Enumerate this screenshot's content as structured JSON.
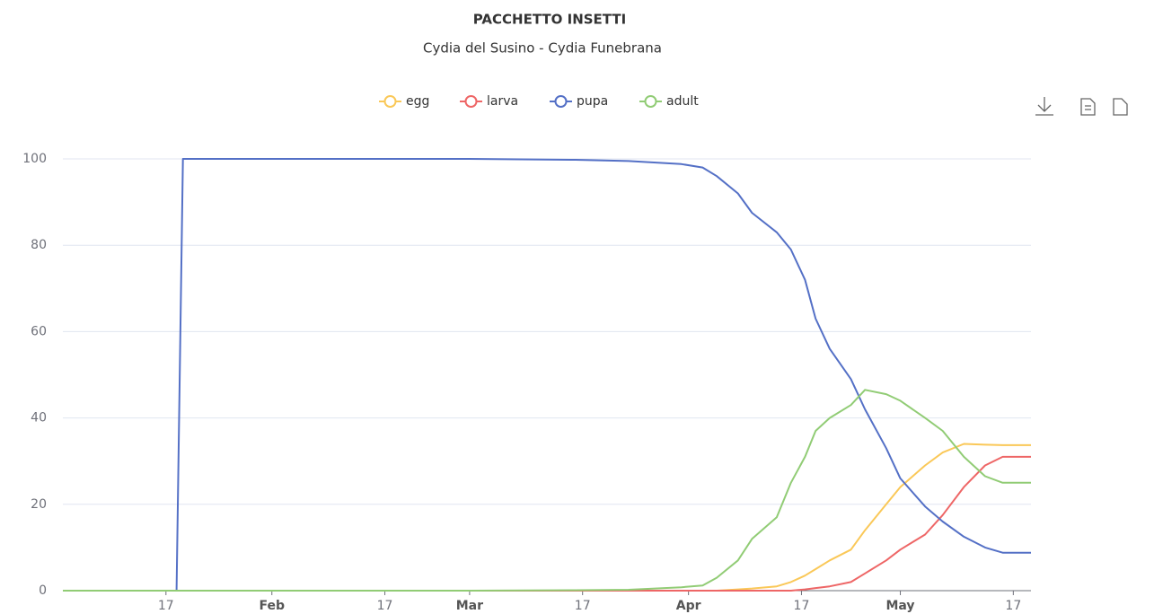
{
  "chart_data": {
    "type": "line",
    "title": "PACCHETTO INSETTI",
    "subtitle": "Cydia del Susino - Cydia Funebrana",
    "x": [
      2.4,
      18.5,
      19.4,
      40,
      60,
      75,
      82.5,
      90,
      93,
      95,
      98,
      100,
      103.5,
      105.5,
      107.5,
      109,
      111,
      114,
      116,
      119,
      121,
      124.5,
      127,
      130,
      133,
      135.5,
      139.5
    ],
    "series": [
      {
        "name": "egg",
        "color": "#fac858",
        "values": [
          0,
          0,
          0,
          0,
          0,
          0,
          0,
          0,
          0,
          0,
          0.3,
          0.5,
          1,
          2,
          3.5,
          5,
          7,
          9.5,
          14,
          20,
          24,
          29,
          32,
          34,
          33.8,
          33.7,
          33.7
        ]
      },
      {
        "name": "larva",
        "color": "#ee6666",
        "values": [
          0,
          0,
          0,
          0,
          0,
          0,
          0,
          0,
          0,
          0,
          0,
          0,
          0,
          0,
          0.3,
          0.6,
          1,
          2,
          4,
          7,
          9.5,
          13,
          17.5,
          24,
          29,
          31,
          31
        ]
      },
      {
        "name": "pupa",
        "color": "#5470c6",
        "values": [
          0,
          0,
          100,
          100,
          100,
          99.8,
          99.5,
          98.8,
          98,
          96,
          92,
          87.5,
          83,
          79,
          72,
          63,
          56,
          49,
          42,
          33,
          26,
          19.5,
          16,
          12.5,
          10,
          8.8,
          8.8
        ]
      },
      {
        "name": "adult",
        "color": "#91cc75",
        "values": [
          0,
          0,
          0,
          0,
          0,
          0.1,
          0.2,
          0.8,
          1.2,
          3,
          7,
          12,
          17,
          25,
          31,
          37,
          40,
          43,
          46.5,
          45.5,
          44,
          40,
          37,
          31,
          26.5,
          25,
          25
        ]
      }
    ],
    "xlim": [
      2.4,
      139.5
    ],
    "xticks": [
      {
        "value": 17,
        "label": "17"
      },
      {
        "value": 32,
        "label": "Feb"
      },
      {
        "value": 48,
        "label": "17"
      },
      {
        "value": 60,
        "label": "Mar"
      },
      {
        "value": 76,
        "label": "17"
      },
      {
        "value": 91,
        "label": "Apr"
      },
      {
        "value": 107,
        "label": "17"
      },
      {
        "value": 121,
        "label": "May"
      },
      {
        "value": 137,
        "label": "17"
      }
    ],
    "ylim": [
      0,
      100
    ],
    "yticks": [
      0,
      20,
      40,
      60,
      80,
      100
    ],
    "grid": true,
    "legend": "top"
  }
}
